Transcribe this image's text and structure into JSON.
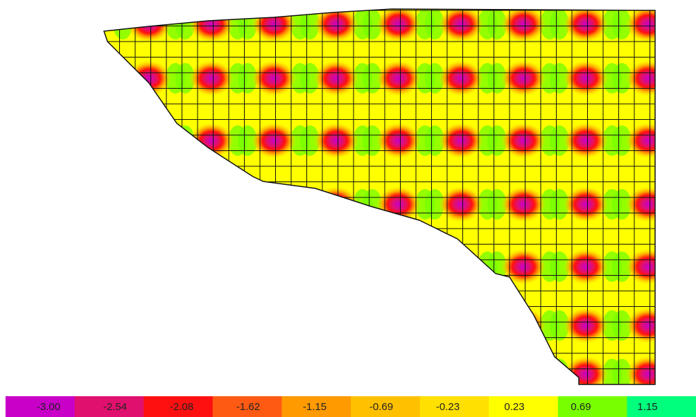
{
  "legend": {
    "labels": [
      "-3.00",
      "-2.54",
      "-2.08",
      "-1.62",
      "-1.15",
      "-0.69",
      "-0.23",
      "0.23",
      "0.69",
      "1.15"
    ],
    "colors": [
      "#c800c8",
      "#e0106e",
      "#ff1010",
      "#ff5a14",
      "#ff9a00",
      "#ffc000",
      "#ffe000",
      "#ffff00",
      "#78ff00",
      "#00ff7c"
    ]
  }
}
